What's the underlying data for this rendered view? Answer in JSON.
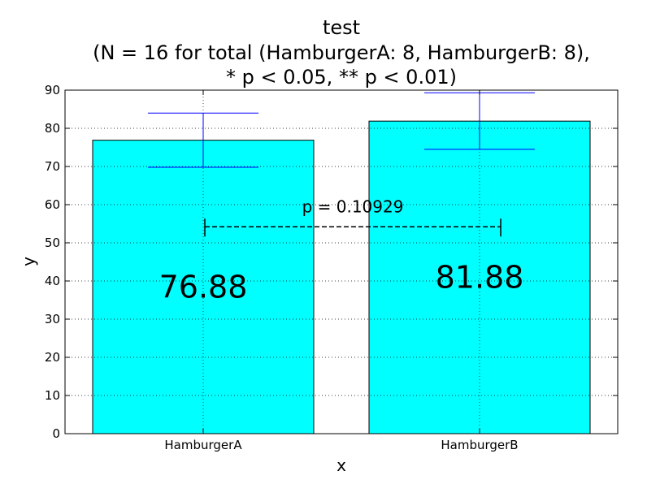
{
  "chart_data": {
    "type": "bar",
    "title": "test",
    "subtitle_lines": [
      "(N = 16 for total (HamburgerA: 8, HamburgerB: 8),",
      "* p < 0.05, ** p < 0.01)"
    ],
    "xlabel": "x",
    "ylabel": "y",
    "categories": [
      "HamburgerA",
      "HamburgerB"
    ],
    "values": [
      76.88,
      81.88
    ],
    "value_labels": [
      "76.88",
      "81.88"
    ],
    "error": [
      {
        "low": 69.8,
        "high": 84.0
      },
      {
        "low": 74.5,
        "high": 89.3
      }
    ],
    "ylim": [
      0,
      90
    ],
    "yticks": [
      0,
      10,
      20,
      30,
      40,
      50,
      60,
      70,
      80,
      90
    ],
    "grid": true,
    "bar_color": "#00ffff",
    "error_color": "#0000ff",
    "significance": {
      "label": "p = 0.10929",
      "y": 54.2,
      "label_y": 59.5
    }
  }
}
